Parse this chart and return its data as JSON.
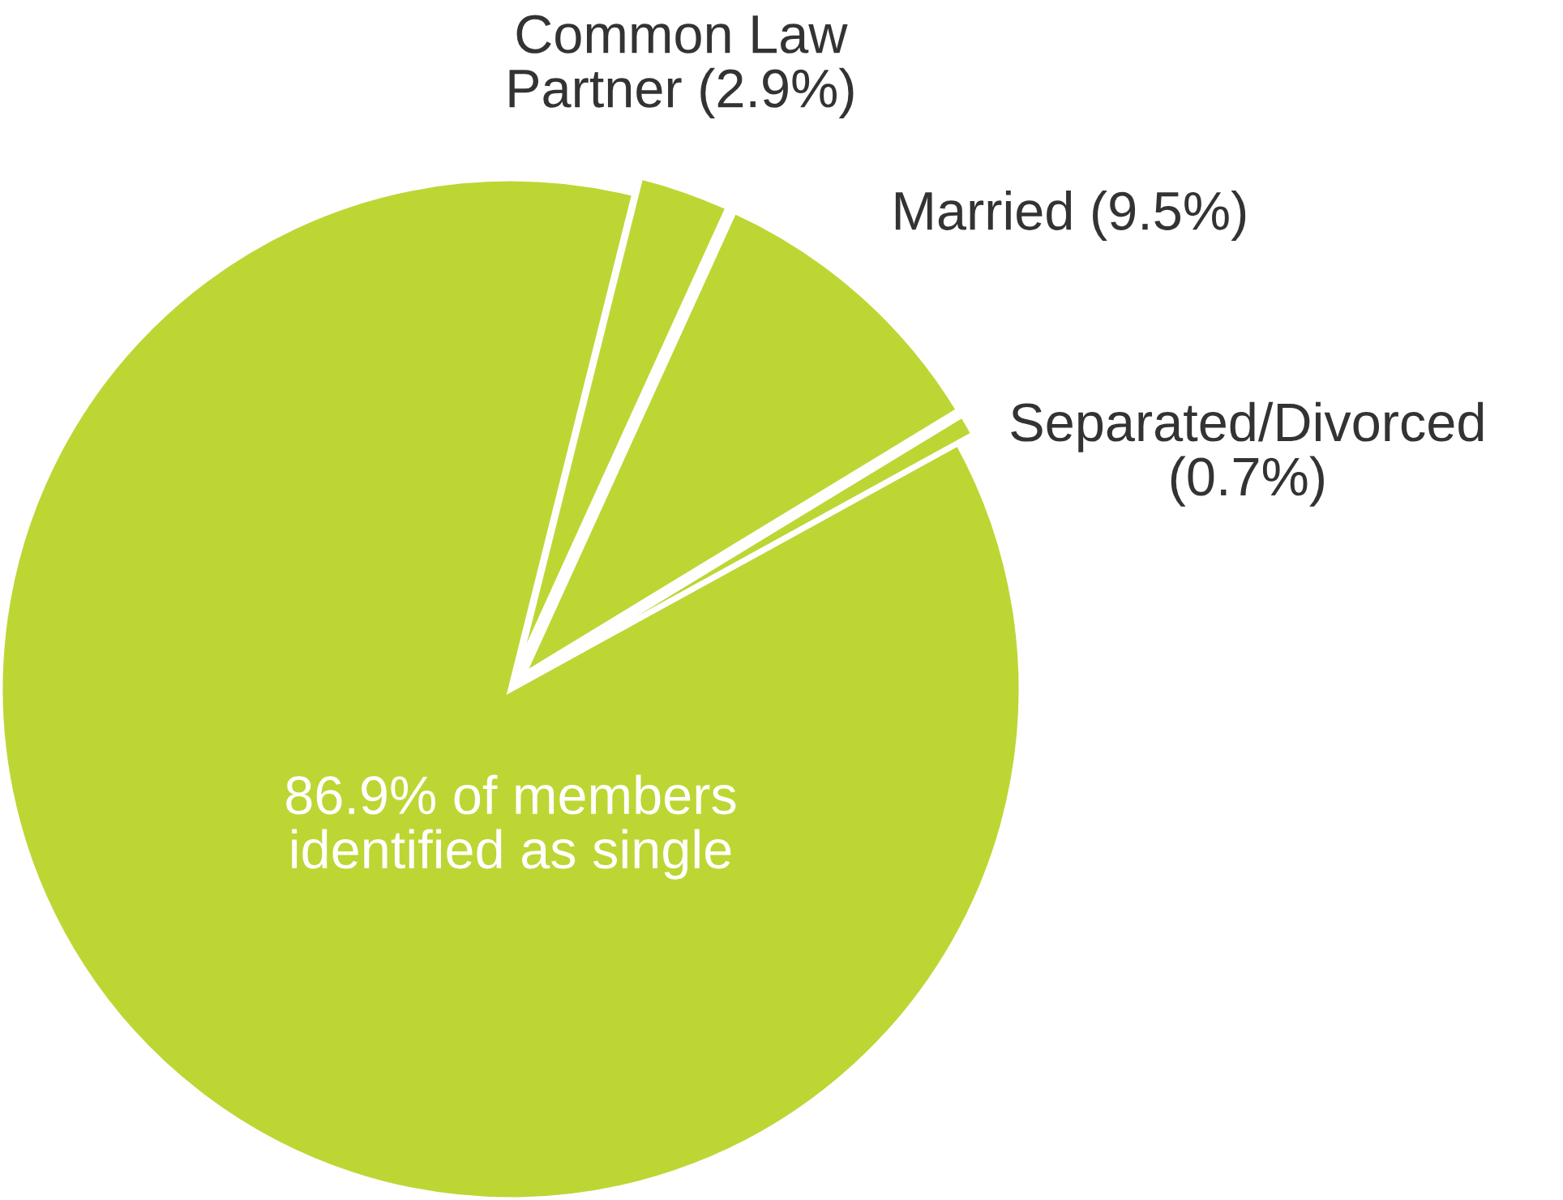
{
  "chart_data": {
    "type": "pie",
    "categories": [
      "86.9% of members\nidentified as single",
      "Common Law\nPartner (2.9%)",
      "Married (9.5%)",
      "Separated/Divorced\n(0.7%)"
    ],
    "values": [
      86.9,
      2.9,
      9.5,
      0.7
    ],
    "colors": [
      "#bdd634",
      "#bdd634",
      "#bdd634",
      "#bdd634"
    ],
    "legend": false
  }
}
